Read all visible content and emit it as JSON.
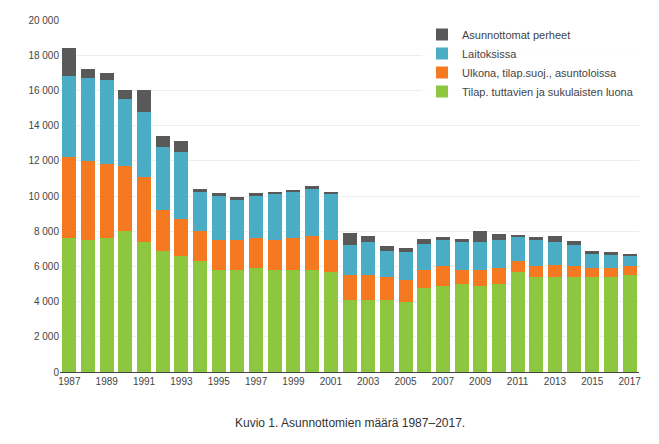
{
  "chart_data": {
    "type": "bar",
    "stacked": true,
    "caption": "Kuvio 1. Asunnottomien määrä 1987–2017.",
    "categories": [
      "1987",
      null,
      "1989",
      null,
      "1991",
      null,
      "1993",
      null,
      "1995",
      null,
      "1997",
      null,
      "1999",
      null,
      "2001",
      null,
      "2003",
      null,
      "2005",
      null,
      "2007",
      null,
      "2009",
      null,
      "2011",
      null,
      "2013",
      null,
      "2015",
      null,
      "2017"
    ],
    "series": [
      {
        "name": "Tilap. tuttavien ja sukulaisten luona",
        "color": "#8DC63F",
        "values": [
          7600,
          7500,
          7600,
          8000,
          7400,
          6900,
          6600,
          6300,
          5800,
          5800,
          5900,
          5800,
          5800,
          5800,
          5700,
          4100,
          4100,
          4100,
          4000,
          4800,
          4900,
          5000,
          4900,
          5000,
          5700,
          5400,
          5400,
          5400,
          5400,
          5400,
          5500
        ]
      },
      {
        "name": "Ulkona, tilap.suoj., asuntoloissa",
        "color": "#F47920",
        "values": [
          4600,
          4500,
          4200,
          3700,
          3700,
          2300,
          2100,
          1700,
          1700,
          1700,
          1700,
          1700,
          1800,
          1900,
          1800,
          1400,
          1400,
          1300,
          1200,
          1000,
          1100,
          800,
          900,
          900,
          600,
          600,
          700,
          600,
          500,
          500,
          500
        ]
      },
      {
        "name": "Laitoksissa",
        "color": "#4BACC6",
        "values": [
          4600,
          4700,
          4800,
          3800,
          3700,
          3600,
          3800,
          2200,
          2500,
          2300,
          2400,
          2600,
          2600,
          2700,
          2600,
          1700,
          1900,
          1500,
          1600,
          1500,
          1500,
          1600,
          1600,
          1600,
          1400,
          1500,
          1300,
          1200,
          800,
          800,
          600
        ]
      },
      {
        "name": "Asunnottomat perheet",
        "color": "#595959",
        "values": [
          1600,
          500,
          400,
          500,
          1200,
          600,
          600,
          200,
          150,
          150,
          150,
          150,
          150,
          150,
          150,
          700,
          300,
          250,
          250,
          250,
          150,
          150,
          600,
          350,
          100,
          150,
          350,
          250,
          150,
          100,
          100
        ]
      }
    ],
    "ylim": [
      0,
      20000
    ],
    "yticks": [
      0,
      {
        "value": 2000,
        "label": "2 000"
      },
      {
        "value": 4000,
        "label": "4 000"
      },
      {
        "value": 6000,
        "label": "6 000"
      },
      {
        "value": 8000,
        "label": "8 000"
      },
      {
        "value": 10000,
        "label": "10 000"
      },
      {
        "value": 12000,
        "label": "12 000"
      },
      {
        "value": 14000,
        "label": "14 000"
      },
      {
        "value": 16000,
        "label": "16 000"
      },
      {
        "value": 18000,
        "label": "18 000"
      },
      {
        "value": 20000,
        "label": "20 000"
      }
    ],
    "grid": true,
    "legend": "upper right"
  }
}
